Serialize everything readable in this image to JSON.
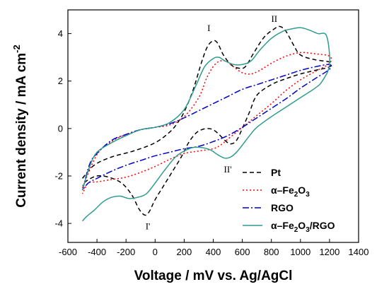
{
  "chart_data": {
    "type": "line",
    "xlabel": "Voltage / mV vs. Ag/AgCl",
    "ylabel": "Current density / mA cm",
    "ylabel_sup": "-2",
    "xlim": [
      -600,
      1400
    ],
    "ylim": [
      -4.8,
      5.0
    ],
    "xticks": [
      -600,
      -400,
      -200,
      0,
      200,
      400,
      600,
      800,
      1000,
      1200,
      1400
    ],
    "yticks": [
      -4,
      -2,
      0,
      2,
      4
    ],
    "grid": false,
    "legend_position": "bottom-right",
    "annotations": [
      {
        "label": "I",
        "x": 370,
        "y": 4.1
      },
      {
        "label": "II",
        "x": 820,
        "y": 4.5
      },
      {
        "label": "II'",
        "x": 500,
        "y": -1.85
      },
      {
        "label": "I'",
        "x": -50,
        "y": -4.25
      }
    ],
    "series": [
      {
        "name": "Pt",
        "legend_label": "Pt",
        "color": "#000000",
        "dash": "6,4",
        "points": [
          [
            -500,
            -2.1
          ],
          [
            -420,
            -1.55
          ],
          [
            -300,
            -1.2
          ],
          [
            -150,
            -0.95
          ],
          [
            0,
            -0.6
          ],
          [
            100,
            -0.15
          ],
          [
            150,
            0.2
          ],
          [
            200,
            0.7
          ],
          [
            260,
            1.6
          ],
          [
            320,
            2.8
          ],
          [
            360,
            3.45
          ],
          [
            400,
            3.7
          ],
          [
            430,
            3.6
          ],
          [
            470,
            3.1
          ],
          [
            520,
            2.7
          ],
          [
            570,
            2.55
          ],
          [
            620,
            2.6
          ],
          [
            680,
            3.2
          ],
          [
            750,
            3.85
          ],
          [
            820,
            4.2
          ],
          [
            860,
            4.3
          ],
          [
            900,
            4.1
          ],
          [
            950,
            3.55
          ],
          [
            1000,
            3.1
          ],
          [
            1100,
            2.9
          ],
          [
            1200,
            2.8
          ],
          [
            1200,
            2.6
          ],
          [
            1100,
            2.45
          ],
          [
            1000,
            2.3
          ],
          [
            900,
            2.1
          ],
          [
            800,
            1.85
          ],
          [
            700,
            1.4
          ],
          [
            650,
            0.7
          ],
          [
            600,
            0.0
          ],
          [
            560,
            -0.5
          ],
          [
            520,
            -0.65
          ],
          [
            480,
            -0.5
          ],
          [
            440,
            -0.25
          ],
          [
            400,
            -0.05
          ],
          [
            360,
            0.0
          ],
          [
            320,
            -0.05
          ],
          [
            280,
            -0.2
          ],
          [
            230,
            -0.6
          ],
          [
            180,
            -1.2
          ],
          [
            120,
            -1.8
          ],
          [
            60,
            -2.4
          ],
          [
            0,
            -3.0
          ],
          [
            -40,
            -3.5
          ],
          [
            -70,
            -3.65
          ],
          [
            -110,
            -3.4
          ],
          [
            -160,
            -2.8
          ],
          [
            -230,
            -2.3
          ],
          [
            -320,
            -2.05
          ],
          [
            -400,
            -2.0
          ],
          [
            -470,
            -2.2
          ],
          [
            -500,
            -2.4
          ]
        ]
      },
      {
        "name": "α-Fe2O3",
        "legend_label": "α–Fe",
        "legend_sub": "2",
        "legend_label_2": "O",
        "legend_sub_2": "3",
        "color": "#ff0000",
        "dash": "2,3",
        "points": [
          [
            -500,
            -2.5
          ],
          [
            -400,
            -1.1
          ],
          [
            -300,
            -0.55
          ],
          [
            -200,
            -0.25
          ],
          [
            -100,
            -0.05
          ],
          [
            0,
            0.05
          ],
          [
            100,
            0.15
          ],
          [
            200,
            0.5
          ],
          [
            300,
            1.3
          ],
          [
            360,
            2.2
          ],
          [
            420,
            2.75
          ],
          [
            480,
            2.85
          ],
          [
            540,
            2.6
          ],
          [
            600,
            2.35
          ],
          [
            660,
            2.3
          ],
          [
            720,
            2.45
          ],
          [
            800,
            2.75
          ],
          [
            900,
            3.05
          ],
          [
            1000,
            3.2
          ],
          [
            1100,
            3.15
          ],
          [
            1200,
            3.05
          ],
          [
            1200,
            2.75
          ],
          [
            1100,
            2.4
          ],
          [
            1000,
            2.05
          ],
          [
            900,
            1.6
          ],
          [
            800,
            1.05
          ],
          [
            700,
            0.55
          ],
          [
            600,
            0.05
          ],
          [
            500,
            -0.45
          ],
          [
            450,
            -0.7
          ],
          [
            400,
            -0.85
          ],
          [
            300,
            -0.95
          ],
          [
            200,
            -1.05
          ],
          [
            100,
            -1.3
          ],
          [
            0,
            -1.6
          ],
          [
            -100,
            -1.85
          ],
          [
            -200,
            -2.05
          ],
          [
            -300,
            -2.15
          ],
          [
            -400,
            -2.25
          ],
          [
            -460,
            -2.3
          ],
          [
            -500,
            -2.75
          ]
        ]
      },
      {
        "name": "RGO",
        "legend_label": "RGO",
        "color": "#0000cc",
        "dash": "9,3,2,3",
        "points": [
          [
            -500,
            -2.6
          ],
          [
            -450,
            -1.5
          ],
          [
            -400,
            -1.05
          ],
          [
            -300,
            -0.5
          ],
          [
            -200,
            -0.25
          ],
          [
            -100,
            -0.05
          ],
          [
            0,
            0.05
          ],
          [
            100,
            0.2
          ],
          [
            200,
            0.45
          ],
          [
            300,
            0.75
          ],
          [
            400,
            1.05
          ],
          [
            500,
            1.35
          ],
          [
            600,
            1.65
          ],
          [
            700,
            1.85
          ],
          [
            800,
            2.05
          ],
          [
            900,
            2.25
          ],
          [
            1000,
            2.45
          ],
          [
            1100,
            2.6
          ],
          [
            1200,
            2.7
          ],
          [
            1200,
            2.5
          ],
          [
            1100,
            2.1
          ],
          [
            1000,
            1.7
          ],
          [
            900,
            1.25
          ],
          [
            800,
            0.85
          ],
          [
            700,
            0.45
          ],
          [
            600,
            0.05
          ],
          [
            500,
            -0.3
          ],
          [
            400,
            -0.55
          ],
          [
            300,
            -0.75
          ],
          [
            200,
            -0.85
          ],
          [
            100,
            -1.0
          ],
          [
            0,
            -1.15
          ],
          [
            -100,
            -1.35
          ],
          [
            -200,
            -1.55
          ],
          [
            -300,
            -1.8
          ],
          [
            -400,
            -2.1
          ],
          [
            -460,
            -2.3
          ],
          [
            -500,
            -2.6
          ]
        ]
      },
      {
        "name": "α-Fe2O3/RGO",
        "legend_label": "α–Fe",
        "legend_sub": "2",
        "legend_label_2": "O",
        "legend_sub_2": "3",
        "legend_label_3": "/RGO",
        "color": "#2f9b8f",
        "dash": "",
        "points": [
          [
            -500,
            -2.6
          ],
          [
            -450,
            -1.6
          ],
          [
            -400,
            -1.0
          ],
          [
            -300,
            -0.6
          ],
          [
            -200,
            -0.3
          ],
          [
            -100,
            -0.05
          ],
          [
            0,
            0.05
          ],
          [
            100,
            0.25
          ],
          [
            200,
            0.8
          ],
          [
            280,
            1.8
          ],
          [
            340,
            2.6
          ],
          [
            400,
            2.95
          ],
          [
            440,
            3.0
          ],
          [
            480,
            2.85
          ],
          [
            540,
            2.7
          ],
          [
            600,
            2.7
          ],
          [
            660,
            2.85
          ],
          [
            720,
            3.3
          ],
          [
            800,
            3.8
          ],
          [
            880,
            4.1
          ],
          [
            940,
            4.2
          ],
          [
            1000,
            4.25
          ],
          [
            1060,
            4.15
          ],
          [
            1120,
            4.0
          ],
          [
            1180,
            3.9
          ],
          [
            1200,
            2.7
          ],
          [
            1150,
            2.0
          ],
          [
            1100,
            1.7
          ],
          [
            1000,
            1.3
          ],
          [
            900,
            0.9
          ],
          [
            800,
            0.5
          ],
          [
            700,
            0.05
          ],
          [
            650,
            -0.3
          ],
          [
            600,
            -0.7
          ],
          [
            560,
            -1.0
          ],
          [
            520,
            -1.2
          ],
          [
            480,
            -1.25
          ],
          [
            430,
            -1.1
          ],
          [
            380,
            -0.9
          ],
          [
            320,
            -0.8
          ],
          [
            260,
            -0.8
          ],
          [
            200,
            -0.95
          ],
          [
            140,
            -1.2
          ],
          [
            60,
            -1.8
          ],
          [
            0,
            -2.3
          ],
          [
            -60,
            -2.75
          ],
          [
            -120,
            -2.9
          ],
          [
            -180,
            -2.95
          ],
          [
            -240,
            -2.85
          ],
          [
            -300,
            -2.9
          ],
          [
            -360,
            -3.1
          ],
          [
            -420,
            -3.45
          ],
          [
            -470,
            -3.7
          ],
          [
            -500,
            -3.9
          ]
        ]
      }
    ]
  }
}
